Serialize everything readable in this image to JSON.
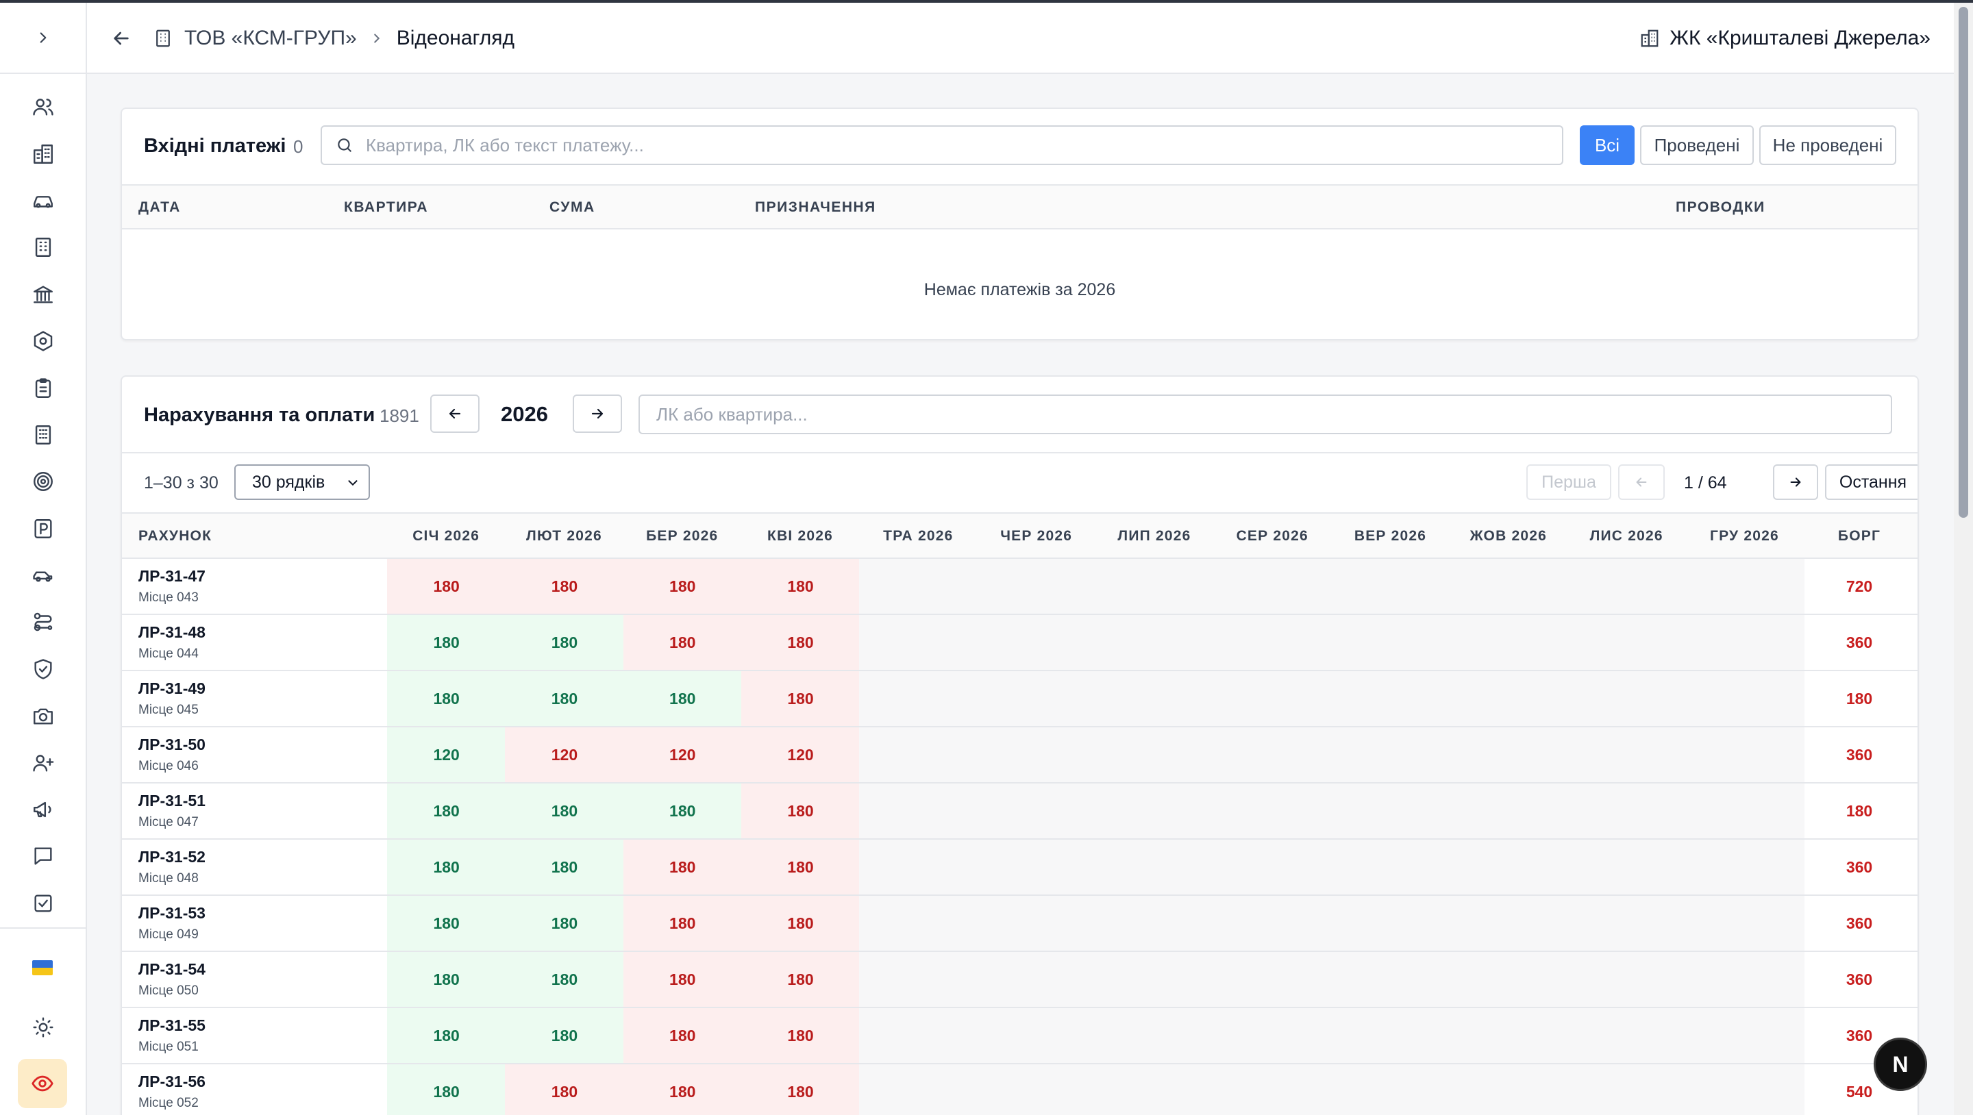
{
  "header": {
    "org": "ТОВ «КСМ-ГРУП»",
    "current": "Відеонагляд",
    "complex": "ЖК «Кришталеві Джерела»"
  },
  "sidebar": {
    "icons": [
      "users-icon",
      "buildings-icon",
      "car-icon",
      "building-icon",
      "bank-icon",
      "hexagon-icon",
      "clipboard-icon",
      "office-icon",
      "target-icon",
      "parking-icon",
      "car-side-icon",
      "route-icon",
      "shield-check-icon",
      "camera-icon",
      "user-plus-icon",
      "megaphone-icon",
      "chat-icon",
      "checkbox-icon"
    ]
  },
  "payments": {
    "title": "Вхідні платежі",
    "count": "0",
    "search_placeholder": "Квартира, ЛК або текст платежу...",
    "filters": [
      "Всі",
      "Проведені",
      "Не проведені"
    ],
    "columns": [
      "ДАТА",
      "КВАРТИРА",
      "СУМА",
      "ПРИЗНАЧЕННЯ",
      "ПРОВОДКИ"
    ],
    "empty_text": "Немає платежів за 2026"
  },
  "charges": {
    "title": "Нарахування та оплати",
    "count": "1891",
    "year": "2026",
    "search_placeholder": "ЛК або квартира...",
    "range": "1–30 з 30",
    "rows_per_page": "30 рядків",
    "first_label": "Перша",
    "page_info": "1 / 64",
    "last_label": "Остання",
    "col_account": "РАХУНОК",
    "months": [
      "СІЧ 2026",
      "ЛЮТ 2026",
      "БЕР 2026",
      "КВІ 2026",
      "ТРА 2026",
      "ЧЕР 2026",
      "ЛИП 2026",
      "СЕР 2026",
      "ВЕР 2026",
      "ЖОВ 2026",
      "ЛИС 2026",
      "ГРУ 2026"
    ],
    "col_debt": "БОРГ",
    "rows": [
      {
        "account": "ЛР-31-47",
        "place": "Місце 043",
        "cells": [
          {
            "v": "180",
            "s": "due"
          },
          {
            "v": "180",
            "s": "due"
          },
          {
            "v": "180",
            "s": "due"
          },
          {
            "v": "180",
            "s": "due"
          }
        ],
        "debt": "720"
      },
      {
        "account": "ЛР-31-48",
        "place": "Місце 044",
        "cells": [
          {
            "v": "180",
            "s": "paid"
          },
          {
            "v": "180",
            "s": "paid"
          },
          {
            "v": "180",
            "s": "due"
          },
          {
            "v": "180",
            "s": "due"
          }
        ],
        "debt": "360"
      },
      {
        "account": "ЛР-31-49",
        "place": "Місце 045",
        "cells": [
          {
            "v": "180",
            "s": "paid"
          },
          {
            "v": "180",
            "s": "paid"
          },
          {
            "v": "180",
            "s": "paid"
          },
          {
            "v": "180",
            "s": "due"
          }
        ],
        "debt": "180"
      },
      {
        "account": "ЛР-31-50",
        "place": "Місце 046",
        "cells": [
          {
            "v": "120",
            "s": "paid"
          },
          {
            "v": "120",
            "s": "due"
          },
          {
            "v": "120",
            "s": "due"
          },
          {
            "v": "120",
            "s": "due"
          }
        ],
        "debt": "360"
      },
      {
        "account": "ЛР-31-51",
        "place": "Місце 047",
        "cells": [
          {
            "v": "180",
            "s": "paid"
          },
          {
            "v": "180",
            "s": "paid"
          },
          {
            "v": "180",
            "s": "paid"
          },
          {
            "v": "180",
            "s": "due"
          }
        ],
        "debt": "180"
      },
      {
        "account": "ЛР-31-52",
        "place": "Місце 048",
        "cells": [
          {
            "v": "180",
            "s": "paid"
          },
          {
            "v": "180",
            "s": "paid"
          },
          {
            "v": "180",
            "s": "due"
          },
          {
            "v": "180",
            "s": "due"
          }
        ],
        "debt": "360"
      },
      {
        "account": "ЛР-31-53",
        "place": "Місце 049",
        "cells": [
          {
            "v": "180",
            "s": "paid"
          },
          {
            "v": "180",
            "s": "paid"
          },
          {
            "v": "180",
            "s": "due"
          },
          {
            "v": "180",
            "s": "due"
          }
        ],
        "debt": "360"
      },
      {
        "account": "ЛР-31-54",
        "place": "Місце 050",
        "cells": [
          {
            "v": "180",
            "s": "paid"
          },
          {
            "v": "180",
            "s": "paid"
          },
          {
            "v": "180",
            "s": "due"
          },
          {
            "v": "180",
            "s": "due"
          }
        ],
        "debt": "360"
      },
      {
        "account": "ЛР-31-55",
        "place": "Місце 051",
        "cells": [
          {
            "v": "180",
            "s": "paid"
          },
          {
            "v": "180",
            "s": "paid"
          },
          {
            "v": "180",
            "s": "due"
          },
          {
            "v": "180",
            "s": "due"
          }
        ],
        "debt": "360"
      },
      {
        "account": "ЛР-31-56",
        "place": "Місце 052",
        "cells": [
          {
            "v": "180",
            "s": "paid"
          },
          {
            "v": "180",
            "s": "due"
          },
          {
            "v": "180",
            "s": "due"
          },
          {
            "v": "180",
            "s": "due"
          }
        ],
        "debt": "540"
      }
    ]
  },
  "badge": "N"
}
